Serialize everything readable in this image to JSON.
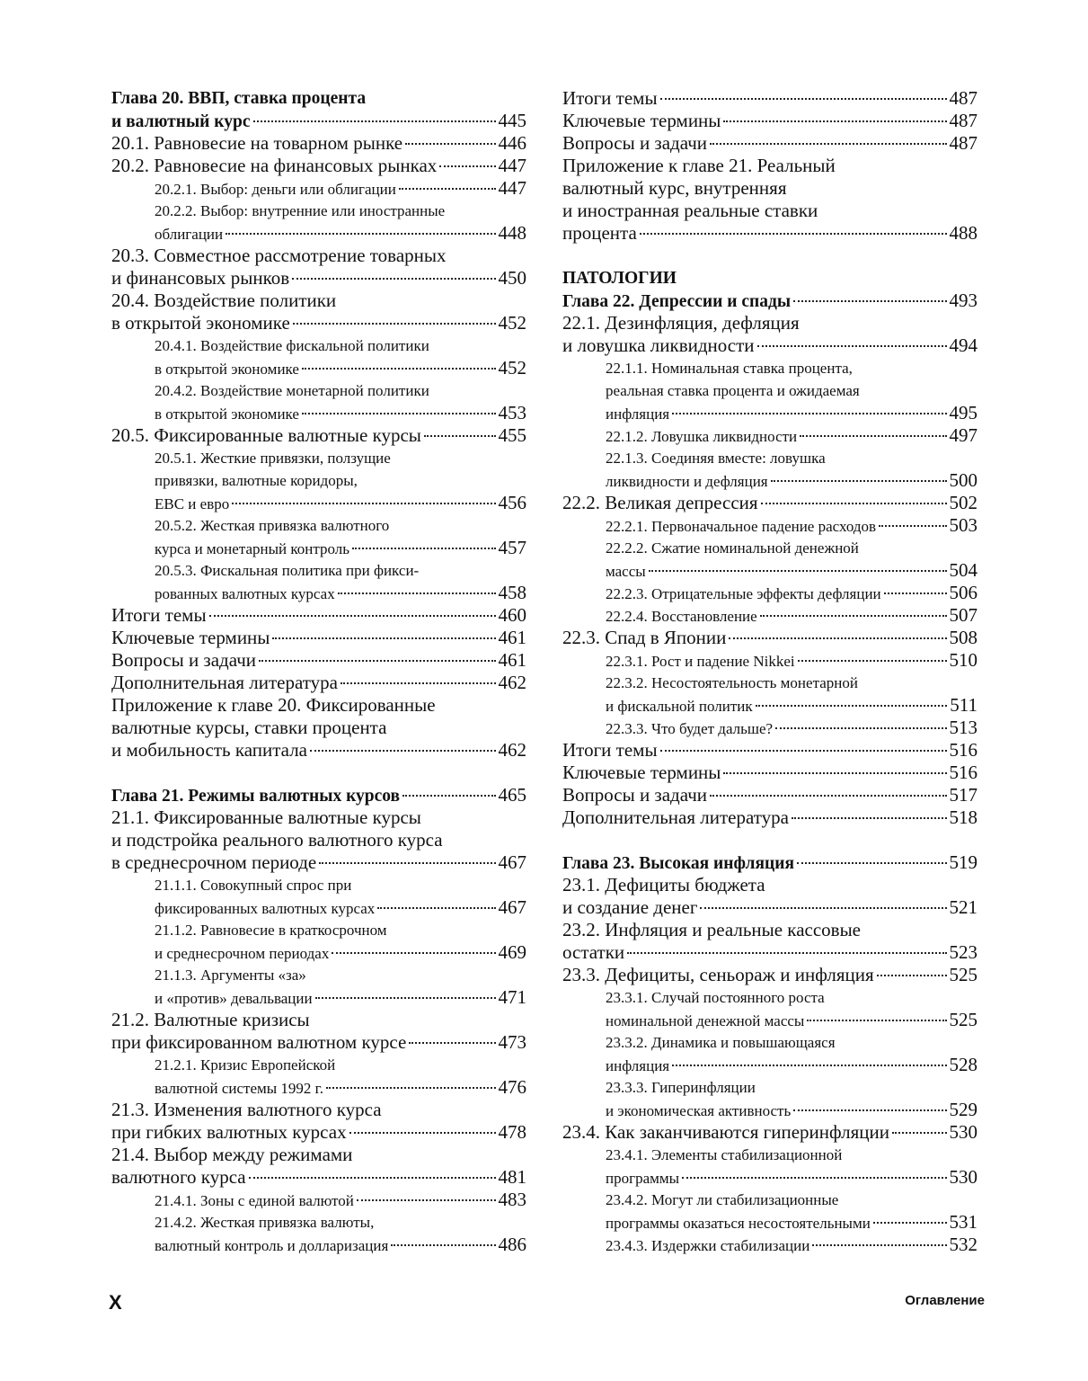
{
  "columns": [
    {
      "entries": [
        {
          "level": "chapter",
          "lines": [
            "Глава 20. ВВП, ставка процента",
            "и валютный курс"
          ],
          "page": 445
        },
        {
          "level": "section",
          "lines": [
            "20.1. Равновесие на товарном рынке"
          ],
          "page": 446
        },
        {
          "level": "section",
          "lines": [
            "20.2. Равновесие на финансовых рынках"
          ],
          "page": 447
        },
        {
          "level": "subsection",
          "lines": [
            "20.2.1. Выбор: деньги или облигации"
          ],
          "page": 447
        },
        {
          "level": "subsection",
          "lines": [
            "20.2.2. Выбор: внутренние или иностранные",
            "облигации"
          ],
          "page": 448
        },
        {
          "level": "section",
          "lines": [
            "20.3. Совместное рассмотрение товарных",
            "и финансовых рынков"
          ],
          "page": 450
        },
        {
          "level": "section",
          "lines": [
            "20.4. Воздействие политики",
            "в открытой экономике"
          ],
          "page": 452
        },
        {
          "level": "subsection",
          "lines": [
            "20.4.1. Воздействие фискальной политики",
            "в открытой экономике"
          ],
          "page": 452
        },
        {
          "level": "subsection",
          "lines": [
            "20.4.2. Воздействие монетарной политики",
            "в открытой экономике"
          ],
          "page": 453
        },
        {
          "level": "section",
          "lines": [
            "20.5. Фиксированные валютные курсы"
          ],
          "page": 455
        },
        {
          "level": "subsection",
          "lines": [
            "20.5.1. Жесткие привязки, ползущие",
            "привязки, валютные коридоры,",
            "ЕВС и евро"
          ],
          "page": 456
        },
        {
          "level": "subsection",
          "lines": [
            "20.5.2. Жесткая привязка валютного",
            "курса и монетарный контроль"
          ],
          "page": 457
        },
        {
          "level": "subsection",
          "lines": [
            "20.5.3. Фискальная политика при фикси-",
            "рованных валютных курсах"
          ],
          "page": 458
        },
        {
          "level": "section",
          "lines": [
            "Итоги темы"
          ],
          "page": 460
        },
        {
          "level": "section",
          "lines": [
            "Ключевые термины"
          ],
          "page": 461
        },
        {
          "level": "section",
          "lines": [
            "Вопросы и задачи"
          ],
          "page": 461
        },
        {
          "level": "section",
          "lines": [
            "Дополнительная литература"
          ],
          "page": 462
        },
        {
          "level": "section",
          "lines": [
            "Приложение к главе 20. Фиксированные",
            "валютные курсы, ставки процента",
            "и мобильность капитала"
          ],
          "page": 462
        },
        {
          "level": "chapter",
          "lines": [
            "Глава 21. Режимы валютных курсов"
          ],
          "page": 465
        },
        {
          "level": "section",
          "lines": [
            "21.1. Фиксированные валютные курсы",
            "и подстройка реального валютного курса",
            "в среднесрочном периоде"
          ],
          "page": 467
        },
        {
          "level": "subsection",
          "lines": [
            "21.1.1. Совокупный спрос при",
            "фиксированных валютных курсах"
          ],
          "page": 467
        },
        {
          "level": "subsection",
          "lines": [
            "21.1.2. Равновесие в краткосрочном",
            "и среднесрочном периодах"
          ],
          "page": 469
        },
        {
          "level": "subsection",
          "lines": [
            "21.1.3. Аргументы «за»",
            "и «против» девальвации"
          ],
          "page": 471
        },
        {
          "level": "section",
          "lines": [
            "21.2. Валютные кризисы",
            "при фиксированном валютном курсе"
          ],
          "page": 473
        },
        {
          "level": "subsection",
          "lines": [
            "21.2.1. Кризис Европейской",
            "валютной системы 1992 г."
          ],
          "page": 476
        },
        {
          "level": "section",
          "lines": [
            "21.3. Изменения валютного курса",
            "при гибких валютных курсах"
          ],
          "page": 478
        },
        {
          "level": "section",
          "lines": [
            "21.4. Выбор между режимами",
            "валютного курса"
          ],
          "page": 481
        },
        {
          "level": "subsection",
          "lines": [
            "21.4.1. Зоны с единой валютой"
          ],
          "page": 483
        },
        {
          "level": "subsection",
          "lines": [
            "21.4.2. Жесткая привязка валюты,",
            "валютный контроль и долларизация"
          ],
          "page": 486
        }
      ]
    },
    {
      "entries": [
        {
          "level": "section",
          "lines": [
            "Итоги темы"
          ],
          "page": 487
        },
        {
          "level": "section",
          "lines": [
            "Ключевые термины"
          ],
          "page": 487
        },
        {
          "level": "section",
          "lines": [
            "Вопросы и задачи"
          ],
          "page": 487
        },
        {
          "level": "section",
          "lines": [
            "Приложение к главе 21. Реальный",
            "валютный курс, внутренняя",
            "и иностранная реальные ставки",
            "процента"
          ],
          "page": 488
        },
        {
          "level": "part",
          "lines": [
            "ПАТОЛОГИИ"
          ]
        },
        {
          "level": "chapter",
          "lines": [
            "Глава 22. Депрессии и спады"
          ],
          "page": 493
        },
        {
          "level": "section",
          "lines": [
            "22.1. Дезинфляция, дефляция",
            "и ловушка ликвидности"
          ],
          "page": 494
        },
        {
          "level": "subsection",
          "lines": [
            "22.1.1. Номинальная ставка процента,",
            "реальная ставка процента и ожидаемая",
            "инфляция"
          ],
          "page": 495
        },
        {
          "level": "subsection",
          "lines": [
            "22.1.2. Ловушка ликвидности"
          ],
          "page": 497
        },
        {
          "level": "subsection",
          "lines": [
            "22.1.3. Соединяя вместе: ловушка",
            "ликвидности и дефляция"
          ],
          "page": 500
        },
        {
          "level": "section",
          "lines": [
            "22.2. Великая депрессия"
          ],
          "page": 502
        },
        {
          "level": "subsection",
          "lines": [
            "22.2.1. Первоначальное падение расходов"
          ],
          "page": 503
        },
        {
          "level": "subsection",
          "lines": [
            "22.2.2. Сжатие номинальной денежной",
            "массы"
          ],
          "page": 504
        },
        {
          "level": "subsection",
          "lines": [
            "22.2.3. Отрицательные эффекты дефляции"
          ],
          "page": 506
        },
        {
          "level": "subsection",
          "lines": [
            "22.2.4. Восстановление"
          ],
          "page": 507
        },
        {
          "level": "section",
          "lines": [
            "22.3. Спад в Японии"
          ],
          "page": 508
        },
        {
          "level": "subsection",
          "lines": [
            "22.3.1. Рост и падение Nikkei"
          ],
          "page": 510
        },
        {
          "level": "subsection",
          "lines": [
            "22.3.2. Несостоятельность монетарной",
            "и фискальной политик"
          ],
          "page": 511
        },
        {
          "level": "subsection",
          "lines": [
            "22.3.3. Что будет дальше?"
          ],
          "page": 513
        },
        {
          "level": "section",
          "lines": [
            "Итоги темы"
          ],
          "page": 516
        },
        {
          "level": "section",
          "lines": [
            "Ключевые термины"
          ],
          "page": 516
        },
        {
          "level": "section",
          "lines": [
            "Вопросы и задачи"
          ],
          "page": 517
        },
        {
          "level": "section",
          "lines": [
            "Дополнительная литература"
          ],
          "page": 518
        },
        {
          "level": "chapter",
          "lines": [
            "Глава 23. Высокая инфляция"
          ],
          "page": 519
        },
        {
          "level": "section",
          "lines": [
            "23.1. Дефициты бюджета",
            "и создание денег"
          ],
          "page": 521
        },
        {
          "level": "section",
          "lines": [
            "23.2. Инфляция и реальные кассовые",
            "остатки"
          ],
          "page": 523
        },
        {
          "level": "section",
          "lines": [
            "23.3. Дефициты, сеньораж и инфляция"
          ],
          "page": 525
        },
        {
          "level": "subsection",
          "lines": [
            "23.3.1. Случай постоянного роста",
            "номинальной денежной массы"
          ],
          "page": 525
        },
        {
          "level": "subsection",
          "lines": [
            "23.3.2. Динамика и повышающаяся",
            "инфляция"
          ],
          "page": 528
        },
        {
          "level": "subsection",
          "lines": [
            "23.3.3. Гиперинфляции",
            "и экономическая активность"
          ],
          "page": 529
        },
        {
          "level": "section",
          "lines": [
            "23.4. Как заканчиваются гиперинфляции"
          ],
          "page": 530
        },
        {
          "level": "subsection",
          "lines": [
            "23.4.1. Элементы стабилизационной",
            "программы"
          ],
          "page": 530
        },
        {
          "level": "subsection",
          "lines": [
            "23.4.2. Могут ли стабилизационные",
            "программы оказаться несостоятельными"
          ],
          "page": 531
        },
        {
          "level": "subsection",
          "lines": [
            "23.4.3. Издержки стабилизации"
          ],
          "page": 532
        }
      ]
    }
  ],
  "footer": {
    "page_label": "X",
    "section": "Оглавление"
  }
}
